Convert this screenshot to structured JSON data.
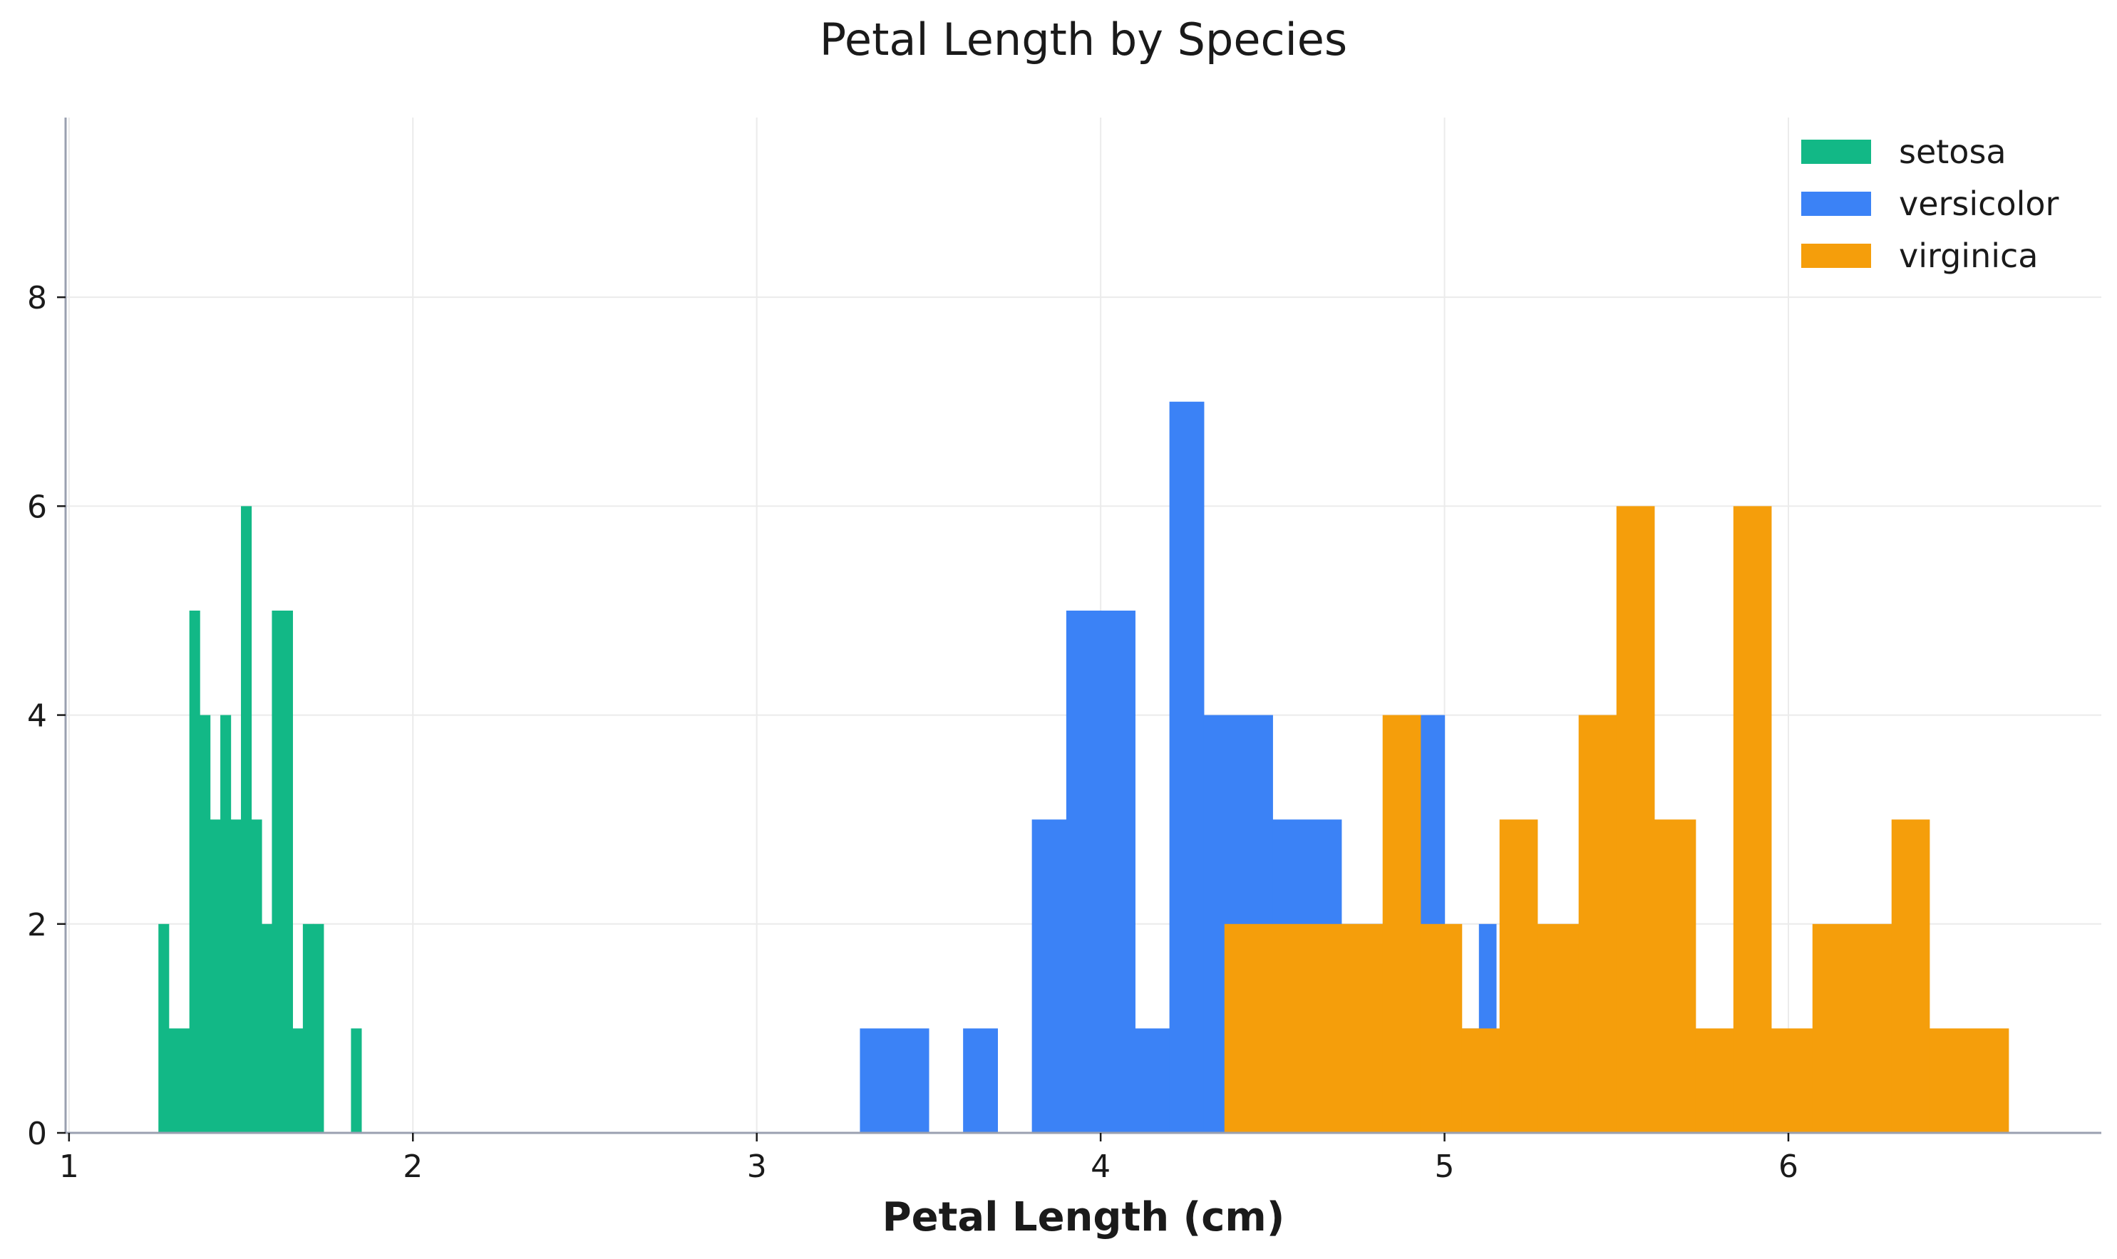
{
  "chart_data": {
    "type": "bar",
    "title": "Petal Length by Species",
    "xlabel": "Petal Length (cm)",
    "ylabel": "",
    "xlim": [
      0.99,
      6.91
    ],
    "ylim": [
      0,
      9.72
    ],
    "xticks": [
      1,
      2,
      3,
      4,
      5,
      6
    ],
    "yticks": [
      0,
      2,
      4,
      6,
      8
    ],
    "grid": true,
    "legend_position": "top-right",
    "series": [
      {
        "name": "setosa",
        "color": "#12b886",
        "bin_edges": [
          1.26,
          1.29,
          1.35,
          1.38,
          1.41,
          1.44,
          1.47,
          1.5,
          1.53,
          1.56,
          1.59,
          1.65,
          1.68,
          1.71,
          1.74,
          1.82,
          1.85
        ],
        "counts": [
          2,
          1,
          5,
          4,
          3,
          4,
          3,
          6,
          3,
          2,
          5,
          1,
          2,
          2,
          0,
          1
        ]
      },
      {
        "name": "versicolor",
        "color": "#3b82f6",
        "bin_edges": [
          3.3,
          3.5,
          3.6,
          3.7,
          3.8,
          3.9,
          4.1,
          4.2,
          4.3,
          4.5,
          4.7,
          4.9,
          5.0,
          5.1,
          5.15
        ],
        "counts": [
          1,
          0,
          1,
          0,
          3,
          5,
          1,
          7,
          4,
          3,
          2,
          4,
          1,
          2
        ]
      },
      {
        "name": "virginica",
        "color": "#f59e0b",
        "bin_edges": [
          4.36,
          4.82,
          4.93,
          5.05,
          5.16,
          5.27,
          5.39,
          5.5,
          5.61,
          5.73,
          5.84,
          5.95,
          6.07,
          6.3,
          6.41,
          6.64
        ],
        "counts": [
          2,
          4,
          2,
          1,
          3,
          2,
          4,
          6,
          3,
          1,
          6,
          1,
          2,
          3,
          1
        ]
      }
    ]
  }
}
